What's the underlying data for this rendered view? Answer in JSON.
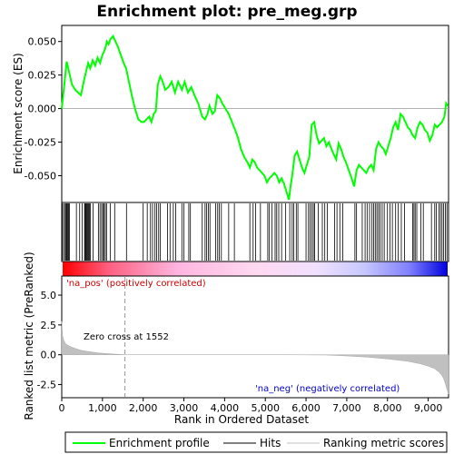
{
  "chart_data": {
    "type": "line",
    "title": "Enrichment plot: pre_meg.grp",
    "xlabel": "Rank in Ordered Dataset",
    "xlim": [
      0,
      9500
    ],
    "x_ticks": [
      0,
      1000,
      2000,
      3000,
      4000,
      5000,
      6000,
      7000,
      8000,
      9000
    ],
    "x_tick_labels": [
      "0",
      "1,000",
      "2,000",
      "3,000",
      "4,000",
      "5,000",
      "6,000",
      "7,000",
      "8,000",
      "9,000"
    ],
    "enrichment_panel": {
      "ylabel": "Enrichment score (ES)",
      "ylim": [
        -0.07,
        0.062
      ],
      "y_ticks": [
        0.05,
        0.025,
        0.0,
        -0.025,
        -0.05
      ],
      "y_tick_labels": [
        "0.050",
        "0.025",
        "0.000",
        "-0.025",
        "-0.050"
      ],
      "series": [
        {
          "name": "Enrichment profile",
          "color": "#00ff00",
          "x": [
            0,
            60,
            120,
            160,
            250,
            330,
            400,
            470,
            540,
            600,
            650,
            700,
            760,
            820,
            880,
            940,
            1000,
            1060,
            1110,
            1150,
            1200,
            1260,
            1320,
            1380,
            1450,
            1520,
            1580,
            1650,
            1720,
            1800,
            1880,
            1960,
            2020,
            2080,
            2150,
            2200,
            2260,
            2310,
            2360,
            2420,
            2480,
            2540,
            2620,
            2700,
            2780,
            2860,
            2950,
            3020,
            3100,
            3180,
            3260,
            3350,
            3450,
            3520,
            3580,
            3630,
            3700,
            3760,
            3820,
            3880,
            3940,
            4020,
            4100,
            4180,
            4260,
            4330,
            4400,
            4480,
            4560,
            4620,
            4680,
            4740,
            4800,
            4860,
            4920,
            4980,
            5040,
            5100,
            5160,
            5220,
            5280,
            5340,
            5400,
            5460,
            5520,
            5580,
            5620,
            5660,
            5720,
            5780,
            5840,
            5900,
            5960,
            6020,
            6080,
            6140,
            6200,
            6260,
            6320,
            6380,
            6440,
            6500,
            6560,
            6620,
            6680,
            6740,
            6800,
            6860,
            6920,
            6980,
            7050,
            7120,
            7180,
            7240,
            7300,
            7360,
            7420,
            7480,
            7540,
            7600,
            7660,
            7720,
            7780,
            7840,
            7900,
            7960,
            8020,
            8080,
            8140,
            8200,
            8260,
            8320,
            8380,
            8440,
            8500,
            8560,
            8620,
            8680,
            8740,
            8800,
            8860,
            8920,
            8980,
            9040,
            9100,
            9160,
            9220,
            9280,
            9340,
            9400,
            9440,
            9480
          ],
          "values": [
            0.0,
            0.017,
            0.035,
            0.03,
            0.018,
            0.014,
            0.012,
            0.01,
            0.02,
            0.028,
            0.034,
            0.03,
            0.036,
            0.032,
            0.038,
            0.034,
            0.04,
            0.044,
            0.05,
            0.048,
            0.052,
            0.054,
            0.05,
            0.046,
            0.04,
            0.034,
            0.03,
            0.02,
            0.01,
            0.0,
            -0.008,
            -0.01,
            -0.01,
            -0.008,
            -0.006,
            -0.01,
            -0.004,
            -0.002,
            0.018,
            0.024,
            0.02,
            0.014,
            0.016,
            0.02,
            0.012,
            0.02,
            0.014,
            0.02,
            0.012,
            0.016,
            0.01,
            0.004,
            -0.006,
            -0.008,
            -0.004,
            0.002,
            -0.004,
            -0.002,
            0.01,
            0.008,
            0.004,
            0.0,
            -0.004,
            -0.01,
            -0.016,
            -0.022,
            -0.03,
            -0.036,
            -0.04,
            -0.044,
            -0.038,
            -0.04,
            -0.044,
            -0.046,
            -0.048,
            -0.05,
            -0.055,
            -0.052,
            -0.05,
            -0.048,
            -0.05,
            -0.055,
            -0.052,
            -0.056,
            -0.062,
            -0.068,
            -0.058,
            -0.05,
            -0.035,
            -0.032,
            -0.038,
            -0.044,
            -0.048,
            -0.042,
            -0.036,
            -0.012,
            -0.01,
            -0.02,
            -0.026,
            -0.024,
            -0.022,
            -0.028,
            -0.025,
            -0.03,
            -0.034,
            -0.038,
            -0.026,
            -0.03,
            -0.036,
            -0.04,
            -0.046,
            -0.052,
            -0.058,
            -0.046,
            -0.042,
            -0.044,
            -0.046,
            -0.048,
            -0.044,
            -0.042,
            -0.046,
            -0.03,
            -0.025,
            -0.028,
            -0.03,
            -0.034,
            -0.028,
            -0.022,
            -0.014,
            -0.01,
            -0.016,
            -0.004,
            -0.006,
            -0.01,
            -0.014,
            -0.016,
            -0.02,
            -0.022,
            -0.014,
            -0.01,
            -0.012,
            -0.016,
            -0.018,
            -0.024,
            -0.02,
            -0.012,
            -0.014,
            -0.012,
            -0.01,
            -0.006,
            0.004,
            0.002
          ]
        }
      ]
    },
    "hits_panel": {
      "series_name": "Hits",
      "hit_ranks": [
        20,
        60,
        90,
        110,
        130,
        150,
        170,
        190,
        360,
        440,
        500,
        560,
        580,
        600,
        620,
        640,
        660,
        680,
        700,
        770,
        900,
        940,
        980,
        1010,
        1040,
        1070,
        1100,
        1190,
        1300,
        1590,
        2000,
        2100,
        2180,
        2230,
        2290,
        2330,
        2380,
        2420,
        2600,
        2660,
        2740,
        2800,
        2950,
        3000,
        3120,
        3160,
        3450,
        3520,
        3560,
        3600,
        3640,
        3780,
        3830,
        3870,
        3920,
        4100,
        4240,
        4620,
        4700,
        4760,
        4880,
        5060,
        5100,
        5160,
        5240,
        5280,
        5330,
        5400,
        5500,
        5600,
        5660,
        5700,
        5760,
        5800,
        6000,
        6060,
        6100,
        6140,
        6180,
        6210,
        6300,
        6400,
        6460,
        6520,
        6700,
        6760,
        6830,
        6900,
        7200,
        7240,
        7380,
        7450,
        7500,
        7560,
        7620,
        7660,
        7700,
        7740,
        7780,
        7820,
        7870,
        7920,
        8000,
        8060,
        8120,
        8200,
        8260,
        8340,
        8420,
        8620,
        8650,
        8680,
        8720,
        8820,
        8880,
        9080,
        9160,
        9200,
        9260,
        9300,
        9340,
        9380,
        9420,
        9460
      ]
    },
    "rank_panel": {
      "series_name": "Ranking metric scores",
      "ylabel": "Ranked list metric (PreRanked)",
      "ylim": [
        -3.6,
        6.6
      ],
      "y_ticks": [
        5.0,
        2.5,
        0.0,
        -2.5
      ],
      "y_tick_labels": [
        "5.0",
        "2.5",
        "0.0",
        "-2.5"
      ],
      "x": [
        0,
        20,
        50,
        100,
        200,
        350,
        500,
        700,
        900,
        1100,
        1300,
        1552,
        2500,
        4000,
        5500,
        6500,
        7000,
        7500,
        8000,
        8500,
        8800,
        9000,
        9150,
        9250,
        9330,
        9380,
        9420,
        9460,
        9500
      ],
      "values": [
        2.8,
        1.6,
        1.2,
        0.9,
        0.7,
        0.5,
        0.35,
        0.25,
        0.15,
        0.1,
        0.05,
        0.0,
        0.0,
        0.0,
        0.0,
        -0.02,
        -0.1,
        -0.2,
        -0.35,
        -0.55,
        -0.75,
        -0.95,
        -1.15,
        -1.4,
        -1.7,
        -2.0,
        -2.4,
        -2.9,
        -3.3
      ],
      "zero_cross": 1552,
      "zero_cross_label": "Zero cross at 1552",
      "pos_label": "'na_pos' (positively correlated)",
      "neg_label": "'na_neg' (negatively correlated)"
    },
    "legend": {
      "placement": "bottom",
      "items": [
        {
          "label": "Enrichment profile",
          "color": "#00ff00"
        },
        {
          "label": "Hits",
          "color": "#000000"
        },
        {
          "label": "Ranking metric scores",
          "color": "#c0c0c0"
        }
      ]
    },
    "colors": {
      "profile": "#00ff00",
      "hit": "#000000",
      "ranking": "#c0c0c0",
      "positive": "#ff0000",
      "negative": "#0000ff",
      "pos_label": "#cc0000",
      "neg_label": "#0000cc"
    }
  }
}
